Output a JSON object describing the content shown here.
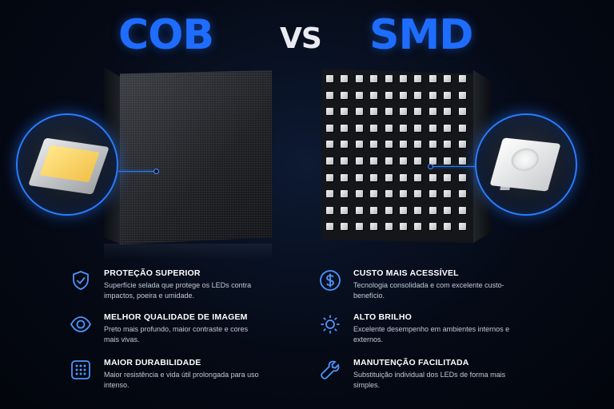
{
  "header": {
    "left_title": "COB",
    "vs": "VS",
    "right_title": "SMD"
  },
  "colors": {
    "accent": "#1e6dff",
    "background": "#050a16"
  },
  "left_features": [
    {
      "icon": "shield-check-icon",
      "title": "PROTEÇÃO SUPERIOR",
      "desc": "Superfície selada que protege os LEDs contra impactos, poeira e umidade."
    },
    {
      "icon": "eye-icon",
      "title": "MELHOR QUALIDADE DE IMAGEM",
      "desc": "Preto mais profundo, maior contraste e cores mais vivas."
    },
    {
      "icon": "dot-grid-icon",
      "title": "MAIOR DURABILIDADE",
      "desc": "Maior resistência e vida útil prolongada para uso intenso."
    }
  ],
  "right_features": [
    {
      "icon": "dollar-icon",
      "title": "CUSTO MAIS ACESSÍVEL",
      "desc": "Tecnologia consolidada e com excelente custo-benefício."
    },
    {
      "icon": "sun-icon",
      "title": "ALTO BRILHO",
      "desc": "Excelente desempenho em ambientes internos e externos."
    },
    {
      "icon": "wrench-icon",
      "title": "MANUTENÇÃO FACILITADA",
      "desc": "Substituição individual dos LEDs de forma mais simples."
    }
  ]
}
